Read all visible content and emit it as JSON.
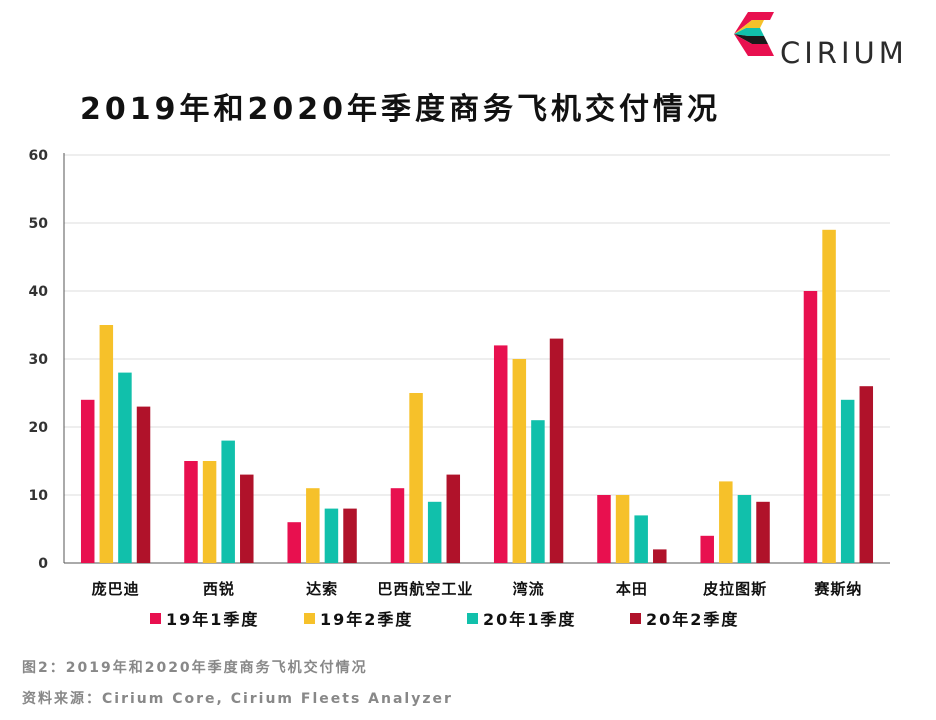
{
  "brand": {
    "name": "CIRIUM",
    "colors": [
      "#e8104f",
      "#f6c12a",
      "#11c0ab",
      "#b0122a",
      "#1a1a1a"
    ]
  },
  "title": "2019年和2020年季度商务飞机交付情况",
  "caption": {
    "figure": "图2：2019年和2020年季度商务飞机交付情况",
    "source": "资料来源：Cirium Core, Cirium Fleets Analyzer"
  },
  "chart_data": {
    "type": "bar",
    "title": "2019年和2020年季度商务飞机交付情况",
    "xlabel": "",
    "ylabel": "",
    "ylim": [
      0,
      60
    ],
    "yticks": [
      0,
      10,
      20,
      30,
      40,
      50,
      60
    ],
    "grid": true,
    "legend_position": "bottom",
    "categories": [
      "庞巴迪",
      "西锐",
      "达索",
      "巴西航空工业",
      "湾流",
      "本田",
      "皮拉图斯",
      "赛斯纳"
    ],
    "series": [
      {
        "name": "19年1季度",
        "color": "#e8104f",
        "values": [
          24,
          15,
          6,
          11,
          32,
          10,
          4,
          40
        ]
      },
      {
        "name": "19年2季度",
        "color": "#f6c12a",
        "values": [
          35,
          15,
          11,
          25,
          30,
          10,
          12,
          49
        ]
      },
      {
        "name": "20年1季度",
        "color": "#11c0ab",
        "values": [
          28,
          18,
          8,
          9,
          21,
          7,
          10,
          24
        ]
      },
      {
        "name": "20年2季度",
        "color": "#b0122a",
        "values": [
          23,
          13,
          8,
          13,
          33,
          2,
          9,
          26
        ]
      }
    ]
  }
}
